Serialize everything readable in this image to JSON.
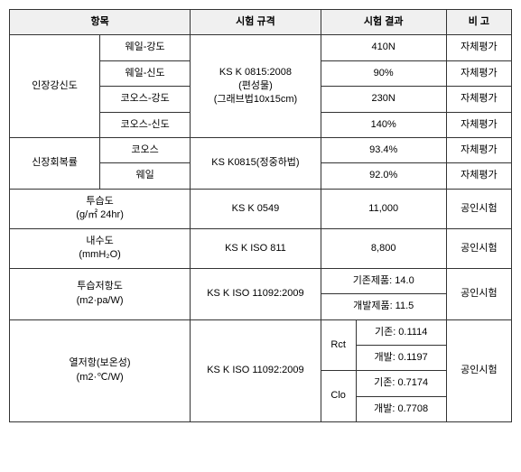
{
  "headers": {
    "item": "항목",
    "spec": "시험 규격",
    "result": "시험 결과",
    "note": "비 고"
  },
  "row1": {
    "label": "인장강신도",
    "sub1": "웨일-강도",
    "sub2": "웨일-신도",
    "sub3": "코오스-강도",
    "sub4": "코오스-신도",
    "spec": "KS K 0815:2008\n(편성물)\n(그래브법10x15cm)",
    "r1": "410N",
    "r2": "90%",
    "r3": "230N",
    "r4": "140%",
    "note": "자체평가"
  },
  "row2": {
    "label": "신장회복률",
    "sub1": "코오스",
    "sub2": "웨일",
    "spec": "KS K0815(정중하법)",
    "r1": "93.4%",
    "r2": "92.0%",
    "note": "자체평가"
  },
  "row3": {
    "label": "투습도\n(g/㎡ 24hr)",
    "spec": "KS K 0549",
    "result": "11,000",
    "note": "공인시험"
  },
  "row4": {
    "label": "내수도\n(mmH₂O)",
    "spec": "KS K ISO 811",
    "result": "8,800",
    "note": "공인시험"
  },
  "row5": {
    "label": "투습저항도\n(m2·pa/W)",
    "spec": "KS K ISO 11092:2009",
    "r1": "기존제품: 14.0",
    "r2": "개발제품: 11.5",
    "note": "공인시험"
  },
  "row6": {
    "label": "열저항(보온성)\n(m2·℃/W)",
    "spec": "KS K ISO 11092:2009",
    "g1": "Rct",
    "g2": "Clo",
    "r1": "기존: 0.1114",
    "r2": "개발: 0.1197",
    "r3": "기존: 0.7174",
    "r4": "개발: 0.7708",
    "note": "공인시험"
  }
}
